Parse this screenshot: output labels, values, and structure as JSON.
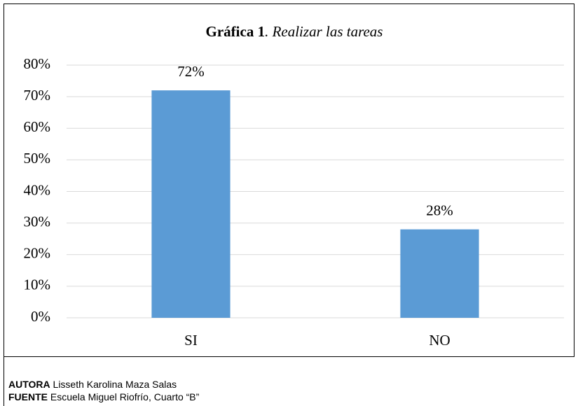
{
  "chart_data": {
    "type": "bar",
    "title": "Gráfica 1",
    "subtitle": ". Realizar las tareas",
    "categories": [
      "SI",
      "NO"
    ],
    "values": [
      72,
      28
    ],
    "value_labels": [
      "72%",
      "28%"
    ],
    "color": "#5b9bd5",
    "ylim": [
      0,
      80
    ],
    "yticks": [
      {
        "value": 0,
        "label": "0%"
      },
      {
        "value": 10,
        "label": "10%"
      },
      {
        "value": 20,
        "label": "20%"
      },
      {
        "value": 30,
        "label": "30%"
      },
      {
        "value": 40,
        "label": "40%"
      },
      {
        "value": 50,
        "label": "50%"
      },
      {
        "value": 60,
        "label": "60%"
      },
      {
        "value": 70,
        "label": "70%"
      },
      {
        "value": 80,
        "label": "80%"
      }
    ],
    "grid": true,
    "notes": [
      {
        "label": "AUTORA",
        "text": "Lisseth Karolina Maza Salas"
      },
      {
        "label": "FUENTE",
        "text": "Escuela Miguel Riofrío, Cuarto “B”"
      }
    ]
  }
}
